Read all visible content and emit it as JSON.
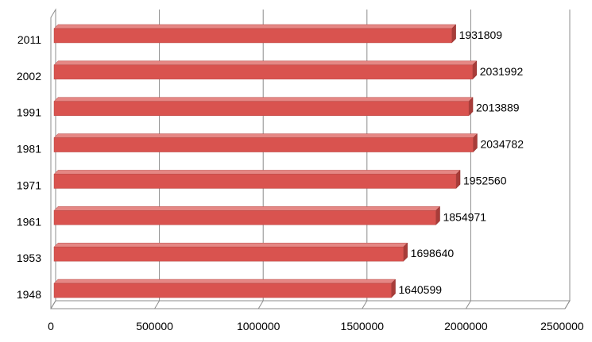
{
  "chart_data": {
    "type": "bar",
    "orientation": "horizontal",
    "style": "3d",
    "categories": [
      "2011",
      "2002",
      "1991",
      "1981",
      "1971",
      "1961",
      "1953",
      "1948"
    ],
    "series": [
      {
        "values": [
          1931809,
          2031992,
          2013889,
          2034782,
          1952560,
          1854971,
          1698640,
          1640599
        ],
        "color": "#d9534f"
      }
    ],
    "data_labels": [
      "1931809",
      "2031992",
      "2013889",
      "2034782",
      "1952560",
      "1854971",
      "1698640",
      "1640599"
    ],
    "x_ticks": [
      0,
      500000,
      1000000,
      1500000,
      2000000,
      2500000
    ],
    "x_tick_labels": [
      "0",
      "500000",
      "1000000",
      "1500000",
      "2000000",
      "2500000"
    ],
    "xlim": [
      0,
      2500000
    ],
    "grid": true,
    "legend": "none",
    "title": "",
    "xlabel": "",
    "ylabel": ""
  }
}
